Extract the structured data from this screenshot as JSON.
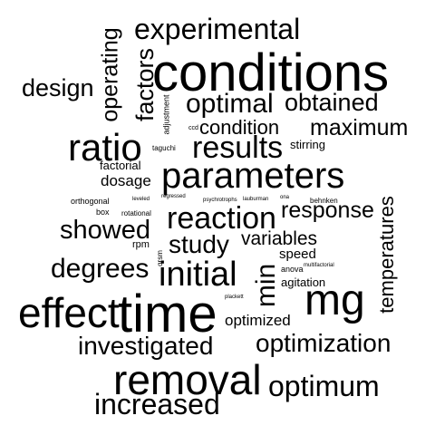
{
  "words": [
    {
      "text": "conditions",
      "weight": 1.0
    },
    {
      "text": "time",
      "weight": 0.98
    },
    {
      "text": "removal",
      "weight": 0.82
    },
    {
      "text": "effect",
      "weight": 0.8
    },
    {
      "text": "mg",
      "weight": 0.78
    },
    {
      "text": "ratio",
      "weight": 0.72
    },
    {
      "text": "parameters",
      "weight": 0.7
    },
    {
      "text": "initial",
      "weight": 0.62
    },
    {
      "text": "increased",
      "weight": 0.58
    },
    {
      "text": "reaction",
      "weight": 0.55
    },
    {
      "text": "results",
      "weight": 0.55
    },
    {
      "text": "experimental",
      "weight": 0.55
    },
    {
      "text": "optimization",
      "weight": 0.52
    },
    {
      "text": "optimum",
      "weight": 0.52
    },
    {
      "text": "investigated",
      "weight": 0.5
    },
    {
      "text": "degrees",
      "weight": 0.5
    },
    {
      "text": "min",
      "weight": 0.5
    },
    {
      "text": "optimal",
      "weight": 0.48
    },
    {
      "text": "study",
      "weight": 0.46
    },
    {
      "text": "showed",
      "weight": 0.46
    },
    {
      "text": "design",
      "weight": 0.44
    },
    {
      "text": "obtained",
      "weight": 0.44
    },
    {
      "text": "factors",
      "weight": 0.42
    },
    {
      "text": "operating",
      "weight": 0.42
    },
    {
      "text": "maximum",
      "weight": 0.4
    },
    {
      "text": "temperatures",
      "weight": 0.38
    },
    {
      "text": "response",
      "weight": 0.38
    },
    {
      "text": "condition",
      "weight": 0.36
    },
    {
      "text": "variables",
      "weight": 0.34
    },
    {
      "text": "optimized",
      "weight": 0.3
    },
    {
      "text": "dosage",
      "weight": 0.28
    },
    {
      "text": "factorial",
      "weight": 0.22
    },
    {
      "text": "agitation",
      "weight": 0.22
    },
    {
      "text": "speed",
      "weight": 0.22
    },
    {
      "text": "stirring",
      "weight": 0.2
    },
    {
      "text": "adjustment",
      "weight": 0.14
    },
    {
      "text": "rpm",
      "weight": 0.14
    },
    {
      "text": "box",
      "weight": 0.13
    },
    {
      "text": "rotational",
      "weight": 0.12
    },
    {
      "text": "orthogonal",
      "weight": 0.12
    },
    {
      "text": "anova",
      "weight": 0.12
    },
    {
      "text": "qrsm",
      "weight": 0.11
    },
    {
      "text": "taguchi",
      "weight": 0.11
    },
    {
      "text": "behnken",
      "weight": 0.1
    },
    {
      "text": "ccd",
      "weight": 0.1
    },
    {
      "text": "leveled",
      "weight": 0.09
    },
    {
      "text": "regressed",
      "weight": 0.09
    },
    {
      "text": "psychrotrophs",
      "weight": 0.09
    },
    {
      "text": "lauburman",
      "weight": 0.09
    },
    {
      "text": "ona",
      "weight": 0.09
    },
    {
      "text": "multifactorial",
      "weight": 0.08
    },
    {
      "text": "plackett",
      "weight": 0.08
    }
  ]
}
